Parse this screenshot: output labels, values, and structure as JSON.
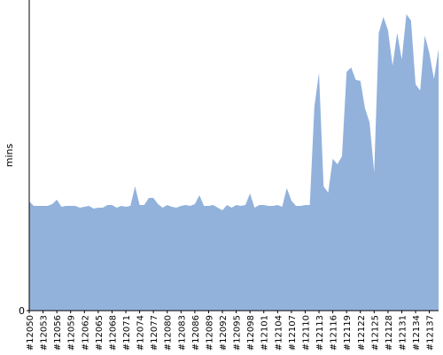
{
  "chart_data": {
    "type": "area",
    "y_label": "mins",
    "categories": [
      "#12050",
      null,
      null,
      "#12053",
      null,
      null,
      "#12056",
      null,
      null,
      "#12059",
      null,
      null,
      "#12062",
      null,
      null,
      "#12065",
      null,
      null,
      "#12068",
      null,
      null,
      "#12071",
      null,
      null,
      "#12074",
      null,
      null,
      "#12077",
      null,
      null,
      "#12080",
      null,
      null,
      "#12083",
      null,
      null,
      "#12086",
      null,
      null,
      "#12089",
      null,
      null,
      "#12092",
      null,
      null,
      "#12095",
      null,
      null,
      "#12098",
      null,
      null,
      "#12101",
      null,
      null,
      "#12104",
      null,
      null,
      "#12107",
      null,
      null,
      "#12110",
      null,
      null,
      "#12113",
      null,
      null,
      "#12116",
      null,
      null,
      "#12119",
      null,
      null,
      "#12122",
      null,
      null,
      "#12125",
      null,
      null,
      "#12128",
      null,
      null,
      "#12131",
      null,
      null,
      "#12134",
      null,
      null,
      "#12137",
      null,
      null
    ],
    "values": [
      12.3,
      11.8,
      11.8,
      11.8,
      11.8,
      12.0,
      12.5,
      11.7,
      11.8,
      11.8,
      11.8,
      11.6,
      11.7,
      11.8,
      11.5,
      11.6,
      11.6,
      11.9,
      11.9,
      11.6,
      11.8,
      11.7,
      11.8,
      14.0,
      11.9,
      11.9,
      12.7,
      12.7,
      12.0,
      11.6,
      11.9,
      11.7,
      11.6,
      11.8,
      11.9,
      11.8,
      12.0,
      13.0,
      11.8,
      11.8,
      11.9,
      11.6,
      11.3,
      11.9,
      11.6,
      11.9,
      11.8,
      11.9,
      13.2,
      11.6,
      11.9,
      11.9,
      11.8,
      11.8,
      11.9,
      11.7,
      13.8,
      12.4,
      11.8,
      11.8,
      11.9,
      11.9,
      23.0,
      26.8,
      14.0,
      13.3,
      17.1,
      16.5,
      17.4,
      26.9,
      27.4,
      26.0,
      25.9,
      22.8,
      21.2,
      15.6,
      31.3,
      33.1,
      31.6,
      27.6,
      31.3,
      28.3,
      33.4,
      32.7,
      25.5,
      24.8,
      31.0,
      29.0,
      26.1,
      29.5
    ],
    "color": "#92b2dc",
    "ylim": [
      0,
      35
    ],
    "yticks": [
      0
    ]
  }
}
